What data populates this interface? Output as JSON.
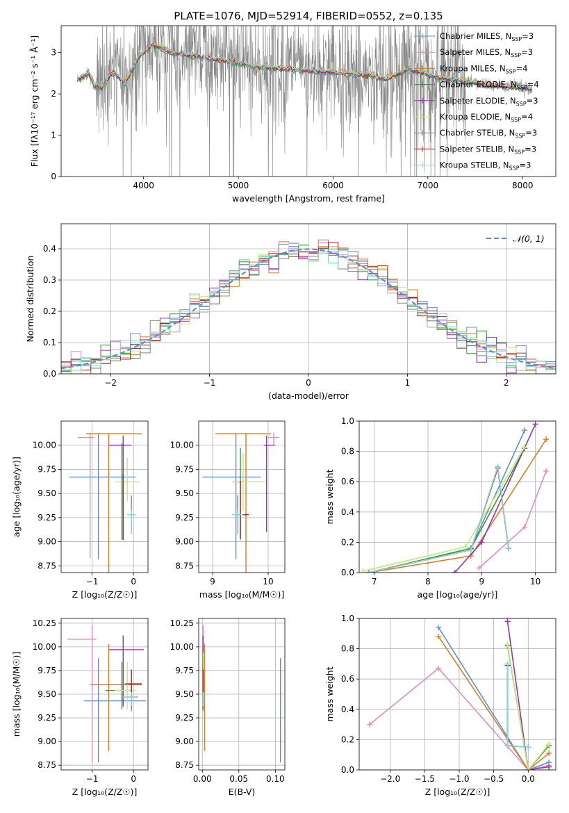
{
  "colors": {
    "chabrier_miles": "#5b8fd4",
    "salpeter_miles": "#e08cc0",
    "kroupa_miles": "#e07b20",
    "chabrier_elodie": "#2ca02c",
    "salpeter_elodie": "#9b30b0",
    "kroupa_elodie": "#c8e878",
    "chabrier_stelib": "#888888",
    "salpeter_stelib": "#b22222",
    "kroupa_stelib": "#80d8e0"
  },
  "chart_data": [
    {
      "id": "spectrum",
      "type": "line",
      "title": "PLATE=1076, MJD=52914, FIBERID=0552, z=0.135",
      "xlabel": "wavelength [Angstrom, rest frame]",
      "ylabel": "Flux [fλ10⁻¹⁷ erg cm⁻² s⁻¹ Å⁻¹]",
      "xlim": [
        3130,
        8350
      ],
      "ylim": [
        0,
        3.65
      ],
      "xticks": [
        "4000",
        "5000",
        "6000",
        "7000",
        "8000"
      ],
      "yticks": [
        "0",
        "1",
        "2",
        "3"
      ],
      "legend_position": "right",
      "legend": [
        {
          "key": "chabrier_miles",
          "label": "Chabrier MILES, N",
          "sub": "SSP",
          "tail": "=3"
        },
        {
          "key": "salpeter_miles",
          "label": "Salpeter MILES, N",
          "sub": "SSP",
          "tail": "=3"
        },
        {
          "key": "kroupa_miles",
          "label": "Kroupa MILES, N",
          "sub": "SSP",
          "tail": "=4"
        },
        {
          "key": "chabrier_elodie",
          "label": "Chabrier ELODIE, N",
          "sub": "SSP",
          "tail": "=4"
        },
        {
          "key": "salpeter_elodie",
          "label": "Salpeter ELODIE, N",
          "sub": "SSP",
          "tail": "=3"
        },
        {
          "key": "kroupa_elodie",
          "label": "Kroupa ELODIE, N",
          "sub": "SSP",
          "tail": "=4"
        },
        {
          "key": "chabrier_stelib",
          "label": "Chabrier STELIB, N",
          "sub": "SSP",
          "tail": "=3"
        },
        {
          "key": "salpeter_stelib",
          "label": "Salpeter STELIB, N",
          "sub": "SSP",
          "tail": "=3"
        },
        {
          "key": "kroupa_stelib",
          "label": "Kroupa STELIB, N",
          "sub": "SSP",
          "tail": "=3"
        }
      ],
      "model_continuum": {
        "x": [
          3300,
          3420,
          3480,
          3560,
          3650,
          3700,
          3800,
          3950,
          4100,
          4300,
          4600,
          5000,
          5200,
          5500,
          5800,
          6100,
          6400,
          6560,
          6800,
          7100,
          7400,
          7700,
          8000,
          8100
        ],
        "y": [
          2.35,
          2.5,
          2.2,
          2.15,
          2.45,
          2.5,
          2.25,
          2.9,
          3.2,
          3.0,
          2.9,
          2.75,
          2.65,
          2.6,
          2.55,
          2.5,
          2.45,
          2.35,
          2.6,
          2.4,
          2.3,
          2.2,
          2.15,
          2.1
        ]
      },
      "noisy_data_range": {
        "x": [
          3500,
          7400
        ],
        "y_center": 2.6,
        "y_spread": 1.3
      }
    },
    {
      "id": "residuals",
      "type": "step",
      "xlabel": "(data-model)/error",
      "ylabel": "Normed distribution",
      "xlim": [
        -2.5,
        2.5
      ],
      "ylim": [
        0,
        0.48
      ],
      "xticks": [
        "−2",
        "−1",
        "0",
        "1",
        "2"
      ],
      "yticks": [
        "0.0",
        "0.1",
        "0.2",
        "0.3",
        "0.4"
      ],
      "legend": {
        "label": "𝒩(0, 1)",
        "position": "top-right"
      },
      "bin_width": 0.1
    },
    {
      "id": "age_vs_Z",
      "type": "errorbar",
      "xlabel": "Z [log₁₀(Z/Z☉)]",
      "ylabel": "age  [log₁₀(age/yr)]",
      "xlim": [
        -1.75,
        0.35
      ],
      "ylim": [
        8.68,
        10.25
      ],
      "xticks": [
        "−1",
        "0"
      ],
      "yticks": [
        "8.75",
        "9.00",
        "9.25",
        "9.50",
        "9.75",
        "10.00"
      ],
      "points": [
        {
          "key": "chabrier_miles",
          "x": -0.85,
          "xerr": [
            0.7,
            0.9
          ],
          "y": 9.67,
          "yerr": [
            0.85,
            0.45
          ]
        },
        {
          "key": "salpeter_miles",
          "x": -1.05,
          "xerr": [
            0.3,
            0.1
          ],
          "y": 10.08,
          "yerr": [
            1.25,
            0.05
          ]
        },
        {
          "key": "kroupa_miles",
          "x": -0.6,
          "xerr": [
            0.55,
            0.8
          ],
          "y": 10.12,
          "yerr": [
            1.5,
            0.0
          ]
        },
        {
          "key": "chabrier_elodie",
          "x": -0.28,
          "xerr": [
            0.02,
            0.05
          ],
          "y": 9.62,
          "yerr": [
            0.6,
            0.4
          ]
        },
        {
          "key": "salpeter_elodie",
          "x": -0.25,
          "xerr": [
            0.35,
            0.2
          ],
          "y": 10.0,
          "yerr": [
            0.98,
            0.1
          ]
        },
        {
          "key": "kroupa_elodie",
          "x": -0.15,
          "xerr": [
            0.3,
            0.3
          ],
          "y": 9.62,
          "yerr": [
            0.2,
            0.25
          ]
        },
        {
          "key": "chabrier_stelib",
          "x": -0.05,
          "xerr": [
            0.1,
            0.1
          ],
          "y": 9.28,
          "yerr": [
            0.2,
            0.2
          ]
        },
        {
          "key": "salpeter_stelib",
          "x": -0.25,
          "xerr": [
            0.0,
            0.02
          ],
          "y": 9.6,
          "yerr": [
            0.58,
            0.1
          ]
        },
        {
          "key": "kroupa_stelib",
          "x": -0.05,
          "xerr": [
            0.1,
            0.1
          ],
          "y": 9.28,
          "yerr": [
            0.2,
            0.05
          ]
        }
      ]
    },
    {
      "id": "age_vs_mass",
      "type": "errorbar",
      "xlabel": "mass [log₁₀(M/M☉)]",
      "ylabel": "",
      "xlim": [
        8.75,
        10.3
      ],
      "ylim": [
        8.68,
        10.25
      ],
      "xticks": [
        "9",
        "10"
      ],
      "yticks": [
        "8.75",
        "9.00",
        "9.25",
        "9.50",
        "9.75",
        "10.00"
      ],
      "points": [
        {
          "key": "chabrier_miles",
          "x": 9.42,
          "xerr": [
            0.6,
            0.45
          ],
          "y": 9.67,
          "yerr": [
            0.85,
            0.45
          ]
        },
        {
          "key": "salpeter_miles",
          "x": 10.1,
          "xerr": [
            0.1,
            0.1
          ],
          "y": 10.08,
          "yerr": [
            0.08,
            0.05
          ]
        },
        {
          "key": "kroupa_miles",
          "x": 9.6,
          "xerr": [
            0.55,
            0.45
          ],
          "y": 10.12,
          "yerr": [
            1.5,
            0.0
          ]
        },
        {
          "key": "chabrier_elodie",
          "x": 9.5,
          "xerr": [
            0.05,
            0.05
          ],
          "y": 9.62,
          "yerr": [
            0.6,
            0.35
          ]
        },
        {
          "key": "salpeter_elodie",
          "x": 9.97,
          "xerr": [
            0.05,
            0.15
          ],
          "y": 10.0,
          "yerr": [
            0.9,
            0.1
          ]
        },
        {
          "key": "kroupa_elodie",
          "x": 9.55,
          "xerr": [
            0.2,
            0.4
          ],
          "y": 9.62,
          "yerr": [
            0.3,
            0.3
          ]
        },
        {
          "key": "chabrier_stelib",
          "x": 9.45,
          "xerr": [
            0.1,
            0.1
          ],
          "y": 9.28,
          "yerr": [
            0.2,
            0.2
          ]
        },
        {
          "key": "salpeter_stelib",
          "x": 9.5,
          "xerr": [
            0.05,
            0.15
          ],
          "y": 9.28,
          "yerr": [
            0.25,
            0.35
          ]
        },
        {
          "key": "kroupa_stelib",
          "x": 9.45,
          "xerr": [
            0.1,
            0.1
          ],
          "y": 9.28,
          "yerr": [
            0.2,
            0.05
          ]
        }
      ]
    },
    {
      "id": "mass_weight_vs_age",
      "type": "line",
      "xlabel": "age  [log₁₀(age/yr)]",
      "ylabel": "mass weight",
      "xlim": [
        6.72,
        10.38
      ],
      "ylim": [
        0,
        1.0
      ],
      "xticks": [
        "7",
        "8",
        "9",
        "10"
      ],
      "yticks": [
        "0.0",
        "0.2",
        "0.4",
        "0.6",
        "0.8",
        "1.0"
      ],
      "series": [
        {
          "key": "chabrier_miles",
          "x": [
            6.9,
            8.8,
            9.8
          ],
          "y": [
            0.0,
            0.16,
            0.94
          ]
        },
        {
          "key": "salpeter_miles",
          "x": [
            8.95,
            9.8,
            10.2
          ],
          "y": [
            0.03,
            0.3,
            0.67
          ]
        },
        {
          "key": "kroupa_miles",
          "x": [
            6.9,
            8.8,
            10.2
          ],
          "y": [
            0.0,
            0.11,
            0.88
          ]
        },
        {
          "key": "chabrier_elodie",
          "x": [
            6.9,
            8.8,
            9.8
          ],
          "y": [
            0.0,
            0.16,
            0.82
          ]
        },
        {
          "key": "salpeter_elodie",
          "x": [
            8.5,
            9.0,
            10.0
          ],
          "y": [
            0.0,
            0.2,
            0.98
          ]
        },
        {
          "key": "kroupa_elodie",
          "x": [
            6.8,
            8.7,
            9.8
          ],
          "y": [
            0.01,
            0.17,
            0.83
          ]
        },
        {
          "key": "chabrier_stelib",
          "x": [
            6.9,
            8.8,
            9.3,
            9.5
          ],
          "y": [
            0.0,
            0.15,
            0.69,
            0.16
          ]
        },
        {
          "key": "salpeter_stelib",
          "x": [
            6.9,
            8.8,
            9.3,
            9.5
          ],
          "y": [
            0.0,
            0.15,
            0.69,
            0.16
          ]
        },
        {
          "key": "kroupa_stelib",
          "x": [
            6.9,
            8.8,
            9.3,
            9.5
          ],
          "y": [
            0.0,
            0.15,
            0.7,
            0.16
          ]
        }
      ]
    },
    {
      "id": "mass_vs_Z",
      "type": "errorbar",
      "xlabel": "Z [log₁₀(Z/Z☉)]",
      "ylabel": "mass [log₁₀(M/M☉)]",
      "xlim": [
        -1.75,
        0.35
      ],
      "ylim": [
        8.7,
        10.3
      ],
      "xticks": [
        "−1",
        "0"
      ],
      "yticks": [
        "8.75",
        "9.00",
        "9.25",
        "9.50",
        "9.75",
        "10.00",
        "10.25"
      ],
      "points": [
        {
          "key": "chabrier_miles",
          "x": -0.85,
          "xerr": [
            0.35,
            1.15
          ],
          "y": 9.43,
          "yerr": [
            0.65,
            0.45
          ]
        },
        {
          "key": "salpeter_miles",
          "x": -1.0,
          "xerr": [
            0.6,
            0.1
          ],
          "y": 10.08,
          "yerr": [
            1.3,
            0.15
          ]
        },
        {
          "key": "kroupa_miles",
          "x": -0.6,
          "xerr": [
            0.45,
            0.8
          ],
          "y": 9.6,
          "yerr": [
            0.7,
            0.43
          ]
        },
        {
          "key": "chabrier_elodie",
          "x": -0.28,
          "xerr": [
            0.4,
            0.3
          ],
          "y": 9.54,
          "yerr": [
            0.2,
            0.3
          ]
        },
        {
          "key": "salpeter_elodie",
          "x": -0.25,
          "xerr": [
            0.35,
            0.5
          ],
          "y": 9.97,
          "yerr": [
            0.6,
            0.15
          ]
        },
        {
          "key": "kroupa_elodie",
          "x": -0.15,
          "xerr": [
            0.3,
            0.2
          ],
          "y": 9.54,
          "yerr": [
            0.2,
            0.3
          ]
        },
        {
          "key": "chabrier_stelib",
          "x": -0.05,
          "xerr": [
            0.2,
            0.15
          ],
          "y": 9.47,
          "yerr": [
            0.15,
            0.15
          ]
        },
        {
          "key": "salpeter_stelib",
          "x": -0.05,
          "xerr": [
            0.15,
            0.25
          ],
          "y": 9.61,
          "yerr": [
            0.25,
            0.15
          ]
        },
        {
          "key": "kroupa_stelib",
          "x": -0.05,
          "xerr": [
            0.2,
            0.1
          ],
          "y": 9.47,
          "yerr": [
            0.1,
            0.05
          ]
        }
      ]
    },
    {
      "id": "mass_vs_ebv",
      "type": "errorbar",
      "xlabel": "E(B-V)",
      "ylabel": "",
      "xlim": [
        -0.005,
        0.113
      ],
      "ylim": [
        8.7,
        10.3
      ],
      "xticks": [
        "0.00",
        "0.05",
        "0.10"
      ],
      "yticks": [
        "8.75",
        "9.00",
        "9.25",
        "9.50",
        "9.75",
        "10.00",
        "10.25"
      ],
      "points": [
        {
          "key": "chabrier_miles",
          "x": 0.107,
          "y": 9.43,
          "yerr": [
            0.65,
            0.45
          ]
        },
        {
          "key": "salpeter_miles",
          "x": 0.001,
          "y": 10.08,
          "yerr": [
            0.15,
            0.15
          ]
        },
        {
          "key": "kroupa_miles",
          "x": 0.003,
          "y": 9.6,
          "yerr": [
            0.7,
            0.43
          ]
        },
        {
          "key": "chabrier_elodie",
          "x": 0.001,
          "y": 9.54,
          "yerr": [
            0.2,
            0.3
          ]
        },
        {
          "key": "salpeter_elodie",
          "x": 0.001,
          "y": 9.97,
          "yerr": [
            0.6,
            0.15
          ]
        },
        {
          "key": "kroupa_elodie",
          "x": 0.0015,
          "y": 9.54,
          "yerr": [
            0.2,
            0.4
          ]
        },
        {
          "key": "chabrier_stelib",
          "x": 0.001,
          "y": 9.47,
          "yerr": [
            0.15,
            0.15
          ]
        },
        {
          "key": "salpeter_stelib",
          "x": 0.001,
          "y": 9.61,
          "yerr": [
            0.25,
            0.15
          ]
        },
        {
          "key": "kroupa_stelib",
          "x": 0.001,
          "y": 9.47,
          "yerr": [
            0.1,
            0.05
          ]
        }
      ]
    },
    {
      "id": "mass_weight_vs_Z",
      "type": "line",
      "xlabel": "Z [log₁₀(Z/Z☉)]",
      "ylabel": "mass weight",
      "xlim": [
        -2.45,
        0.4
      ],
      "ylim": [
        0,
        1.0
      ],
      "xticks": [
        "−2.0",
        "−1.5",
        "−1.0",
        "−0.5",
        "0.0"
      ],
      "yticks": [
        "0.0",
        "0.2",
        "0.4",
        "0.6",
        "0.8",
        "1.0"
      ],
      "series": [
        {
          "key": "chabrier_miles",
          "x": [
            -1.3,
            0.0,
            0.3
          ],
          "y": [
            0.94,
            0.0,
            0.05
          ]
        },
        {
          "key": "salpeter_miles",
          "x": [
            -2.3,
            -1.3,
            0.0,
            0.3
          ],
          "y": [
            0.3,
            0.67,
            0.0,
            0.03
          ]
        },
        {
          "key": "kroupa_miles",
          "x": [
            -1.3,
            0.0,
            0.3
          ],
          "y": [
            0.88,
            0.0,
            0.11
          ]
        },
        {
          "key": "chabrier_elodie",
          "x": [
            -0.3,
            0.0,
            0.3
          ],
          "y": [
            0.82,
            0.0,
            0.16
          ]
        },
        {
          "key": "salpeter_elodie",
          "x": [
            -0.3,
            0.0,
            0.3
          ],
          "y": [
            0.98,
            0.0,
            0.02
          ]
        },
        {
          "key": "kroupa_elodie",
          "x": [
            -0.3,
            0.0,
            0.3
          ],
          "y": [
            0.83,
            0.0,
            0.17
          ]
        },
        {
          "key": "chabrier_stelib",
          "x": [
            -0.3,
            -0.3,
            0.0
          ],
          "y": [
            0.69,
            0.16,
            0.15
          ]
        },
        {
          "key": "salpeter_stelib",
          "x": [
            -0.3,
            -0.3,
            0.0
          ],
          "y": [
            0.69,
            0.16,
            0.15
          ]
        },
        {
          "key": "kroupa_stelib",
          "x": [
            -0.3,
            -0.3,
            0.0
          ],
          "y": [
            0.7,
            0.16,
            0.15
          ]
        }
      ]
    }
  ]
}
